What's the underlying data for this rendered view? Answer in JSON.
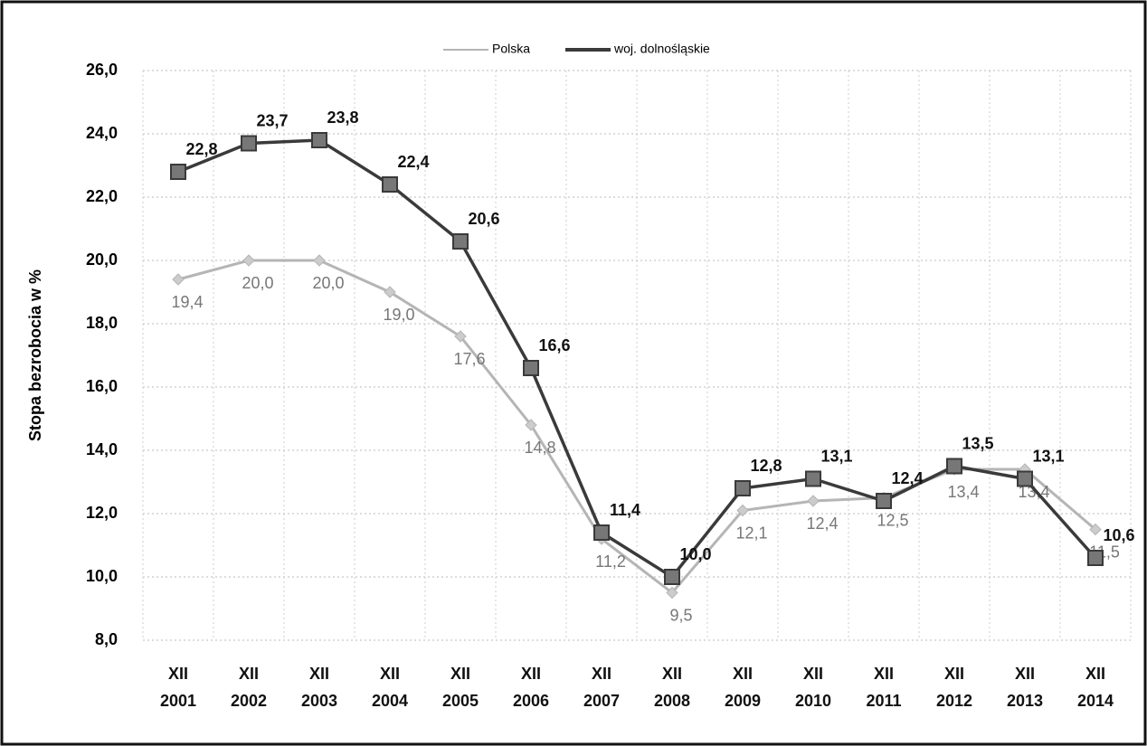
{
  "chart_data": {
    "type": "line",
    "y_label": "Stopa bezrobocia w %",
    "categories": [
      "XII\n2001",
      "XII\n2002",
      "XII\n2003",
      "XII\n2004",
      "XII\n2005",
      "XII\n2006",
      "XII\n2007",
      "XII\n2008",
      "XII\n2009",
      "XII\n2010",
      "XII\n2011",
      "XII\n2012",
      "XII\n2013",
      "XII\n2014"
    ],
    "series": [
      {
        "name": "Polska",
        "color": "#b5b5b5",
        "values": [
          19.4,
          20.0,
          20.0,
          19.0,
          17.6,
          14.8,
          11.2,
          9.5,
          12.1,
          12.4,
          12.5,
          13.4,
          13.4,
          11.5
        ],
        "value_labels": [
          "19,4",
          "20,0",
          "20,0",
          "19,0",
          "17,6",
          "14,8",
          "11,2",
          "9,5",
          "12,1",
          "12,4",
          "12,5",
          "13,4",
          "13,4",
          "11,5"
        ]
      },
      {
        "name": "woj. dolnośląskie",
        "color": "#3a3a3a",
        "values": [
          22.8,
          23.7,
          23.8,
          22.4,
          20.6,
          16.6,
          11.4,
          10.0,
          12.8,
          13.1,
          12.4,
          13.5,
          13.1,
          10.6
        ],
        "value_labels": [
          "22,8",
          "23,7",
          "23,8",
          "22,4",
          "20,6",
          "16,6",
          "11,4",
          "10,0",
          "12,8",
          "13,1",
          "12,4",
          "13,5",
          "13,1",
          "10,6"
        ]
      }
    ],
    "ylim": [
      8,
      26
    ],
    "yticks": [
      {
        "value": 8,
        "label": "8,0"
      },
      {
        "value": 10,
        "label": "10,0"
      },
      {
        "value": 12,
        "label": "12,0"
      },
      {
        "value": 14,
        "label": "14,0"
      },
      {
        "value": 16,
        "label": "16,0"
      },
      {
        "value": 18,
        "label": "18,0"
      },
      {
        "value": 20,
        "label": "20,0"
      },
      {
        "value": 22,
        "label": "22,0"
      },
      {
        "value": 24,
        "label": "24,0"
      },
      {
        "value": 26,
        "label": "26,0"
      }
    ],
    "grid": true,
    "legend": "top"
  }
}
